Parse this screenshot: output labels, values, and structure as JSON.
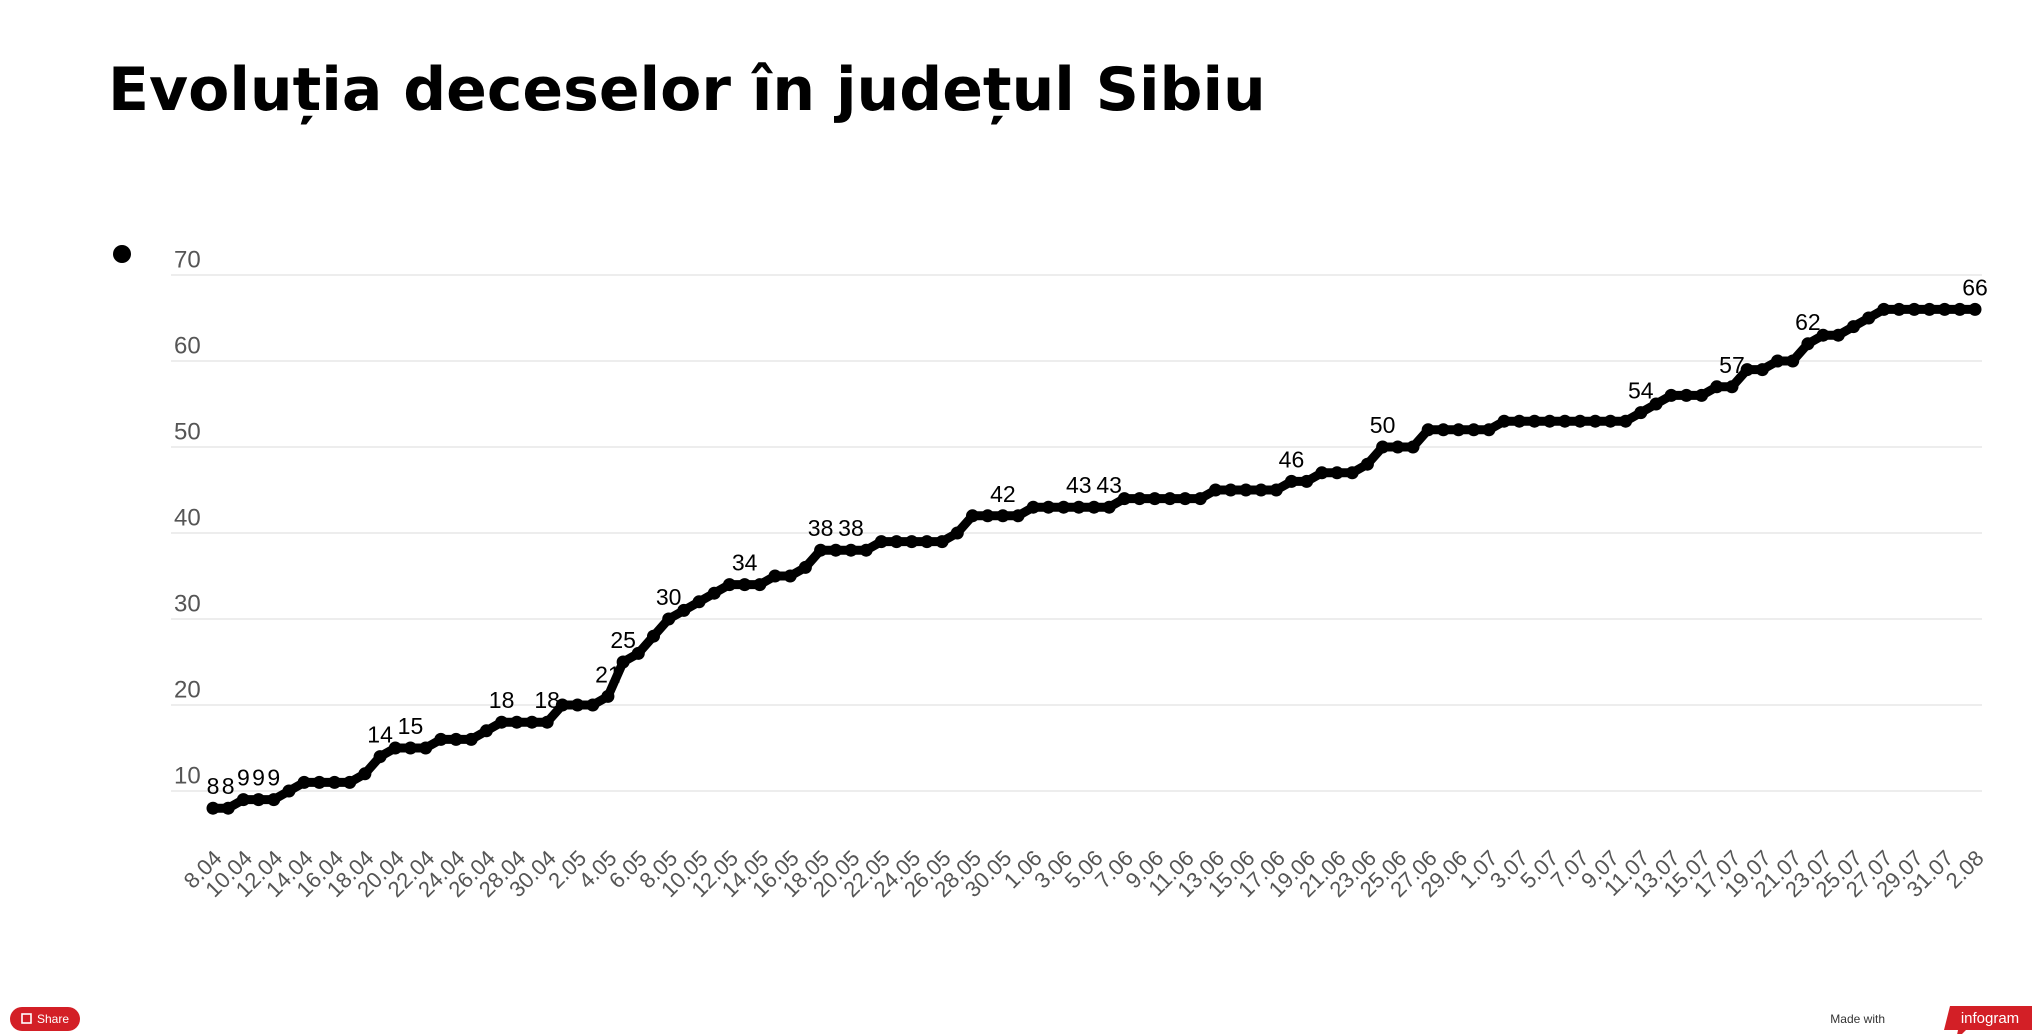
{
  "chart_data": {
    "type": "line",
    "title": "Evoluția deceselor în județul Sibiu",
    "categories": [
      "8.04",
      null,
      "10.04",
      null,
      "12.04",
      null,
      "14.04",
      null,
      "16.04",
      null,
      "18.04",
      null,
      "20.04",
      null,
      "22.04",
      null,
      "24.04",
      null,
      "26.04",
      null,
      "28.04",
      null,
      "30.04",
      null,
      "2.05",
      null,
      "4.05",
      null,
      "6.05",
      null,
      "8.05",
      null,
      "10.05",
      null,
      "12.05",
      null,
      "14.05",
      null,
      "16.05",
      null,
      "18.05",
      null,
      "20.05",
      null,
      "22.05",
      null,
      "24.05",
      null,
      "26.05",
      null,
      "28.05",
      null,
      "30.05",
      null,
      "1.06",
      null,
      "3.06",
      null,
      "5.06",
      null,
      "7.06",
      null,
      "9.06",
      null,
      "11.06",
      null,
      "13.06",
      null,
      "15.06",
      null,
      "17.06",
      null,
      "19.06",
      null,
      "21.06",
      null,
      "23.06",
      null,
      "25.06",
      null,
      "27.06",
      null,
      "29.06",
      null,
      "1.07",
      null,
      "3.07",
      null,
      "5.07",
      null,
      "7.07",
      null,
      "9.07",
      null,
      "11.07",
      null,
      "13.07",
      null,
      "15.07",
      null,
      "17.07",
      null,
      "19.07",
      null,
      "21.07",
      null,
      "23.07",
      null,
      "25.07",
      null,
      "27.07",
      null,
      "29.07",
      null,
      "31.07",
      null,
      "2.08"
    ],
    "values": [
      8,
      8,
      9,
      9,
      9,
      10,
      11,
      11,
      11,
      11,
      12,
      14,
      15,
      15,
      15,
      16,
      16,
      16,
      17,
      18,
      18,
      18,
      18,
      20,
      20,
      20,
      21,
      25,
      26,
      28,
      30,
      31,
      32,
      33,
      34,
      34,
      34,
      35,
      35,
      36,
      38,
      38,
      38,
      38,
      39,
      39,
      39,
      39,
      39,
      40,
      42,
      42,
      42,
      42,
      43,
      43,
      43,
      43,
      43,
      43,
      44,
      44,
      44,
      44,
      44,
      44,
      45,
      45,
      45,
      45,
      45,
      46,
      46,
      47,
      47,
      47,
      48,
      50,
      50,
      50,
      52,
      52,
      52,
      52,
      52,
      53,
      53,
      53,
      53,
      53,
      53,
      53,
      53,
      53,
      54,
      55,
      56,
      56,
      56,
      57,
      57,
      59,
      59,
      60,
      60,
      62,
      63,
      63,
      64,
      65,
      66,
      66,
      66,
      66,
      66,
      66,
      66
    ],
    "value_labels": [
      "8",
      "8",
      "9",
      "9",
      "9",
      null,
      null,
      null,
      null,
      null,
      null,
      "14",
      null,
      "15",
      null,
      null,
      null,
      null,
      null,
      "18",
      null,
      null,
      "18",
      null,
      null,
      null,
      "21",
      "25",
      null,
      null,
      "30",
      null,
      null,
      null,
      null,
      "34",
      null,
      null,
      null,
      null,
      "38",
      null,
      "38",
      null,
      null,
      null,
      null,
      null,
      null,
      null,
      null,
      null,
      "42",
      null,
      null,
      null,
      null,
      "43",
      null,
      "43",
      null,
      null,
      null,
      null,
      null,
      null,
      null,
      null,
      null,
      null,
      null,
      "46",
      null,
      null,
      null,
      null,
      null,
      "50",
      null,
      null,
      null,
      null,
      null,
      null,
      null,
      null,
      null,
      null,
      null,
      null,
      null,
      null,
      null,
      null,
      "54",
      null,
      null,
      null,
      null,
      null,
      "57",
      null,
      null,
      null,
      null,
      "62",
      null,
      null,
      null,
      null,
      null,
      null,
      null,
      null,
      null,
      null,
      "66"
    ],
    "color": "#000000",
    "ylim": [
      6,
      70
    ],
    "yticks": [
      10,
      20,
      30,
      40,
      50,
      60,
      70
    ],
    "grid": true
  },
  "footer": {
    "share": "Share",
    "made_with": "Made with",
    "brand": "infogram"
  }
}
